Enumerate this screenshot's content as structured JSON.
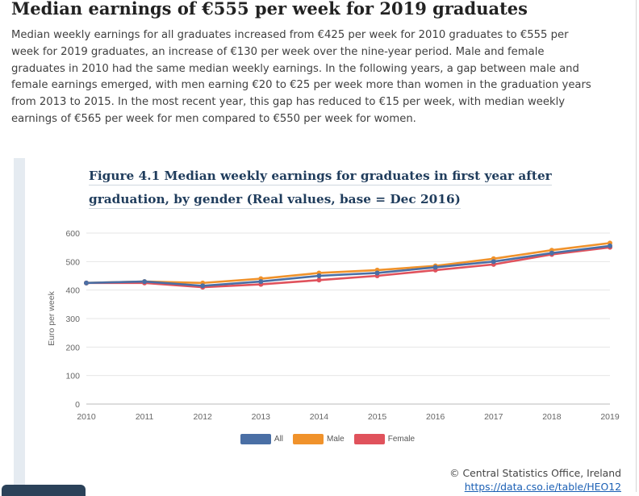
{
  "heading": "Median earnings of €555 per week for 2019 graduates",
  "intro": "Median weekly earnings for all graduates increased from €425 per week for 2010 graduates to €555 per week for 2019 graduates, an increase of €130 per week over the nine-year period. Male and female graduates in 2010 had the same median weekly earnings. In the following years, a gap between male and female earnings emerged, with men earning €20 to €25 per week more than women in the graduation years from 2013 to 2015. In the most recent year, this gap has reduced to €15 per week, with median weekly earnings of €565 per week for men compared to €550 per week for women.",
  "figure_title": "Figure 4.1 Median weekly earnings for graduates in first year after graduation, by gender (Real values, base = Dec 2016)",
  "credit": {
    "source": "© Central Statistics Office, Ireland",
    "link": "https://data.cso.ie/table/HEO12"
  },
  "colors": {
    "all": "#4a6fa5",
    "male": "#f0922b",
    "female": "#e0525c",
    "title": "#1f3c5c"
  },
  "chart_data": {
    "type": "line",
    "title": "",
    "xlabel": "",
    "ylabel": "Euro per week",
    "x": [
      "2010",
      "2011",
      "2012",
      "2013",
      "2014",
      "2015",
      "2016",
      "2017",
      "2018",
      "2019"
    ],
    "ylim": [
      0,
      600
    ],
    "yticks": [
      0,
      100,
      200,
      300,
      400,
      500,
      600
    ],
    "grid": true,
    "legend": "bottom",
    "series": [
      {
        "name": "All",
        "color": "#4a6fa5",
        "values": [
          425,
          430,
          415,
          430,
          450,
          460,
          480,
          500,
          530,
          555
        ]
      },
      {
        "name": "Male",
        "color": "#f0922b",
        "values": [
          425,
          430,
          425,
          440,
          460,
          470,
          485,
          510,
          540,
          565
        ]
      },
      {
        "name": "Female",
        "color": "#e0525c",
        "values": [
          425,
          425,
          410,
          420,
          435,
          450,
          470,
          490,
          525,
          550
        ]
      }
    ]
  }
}
